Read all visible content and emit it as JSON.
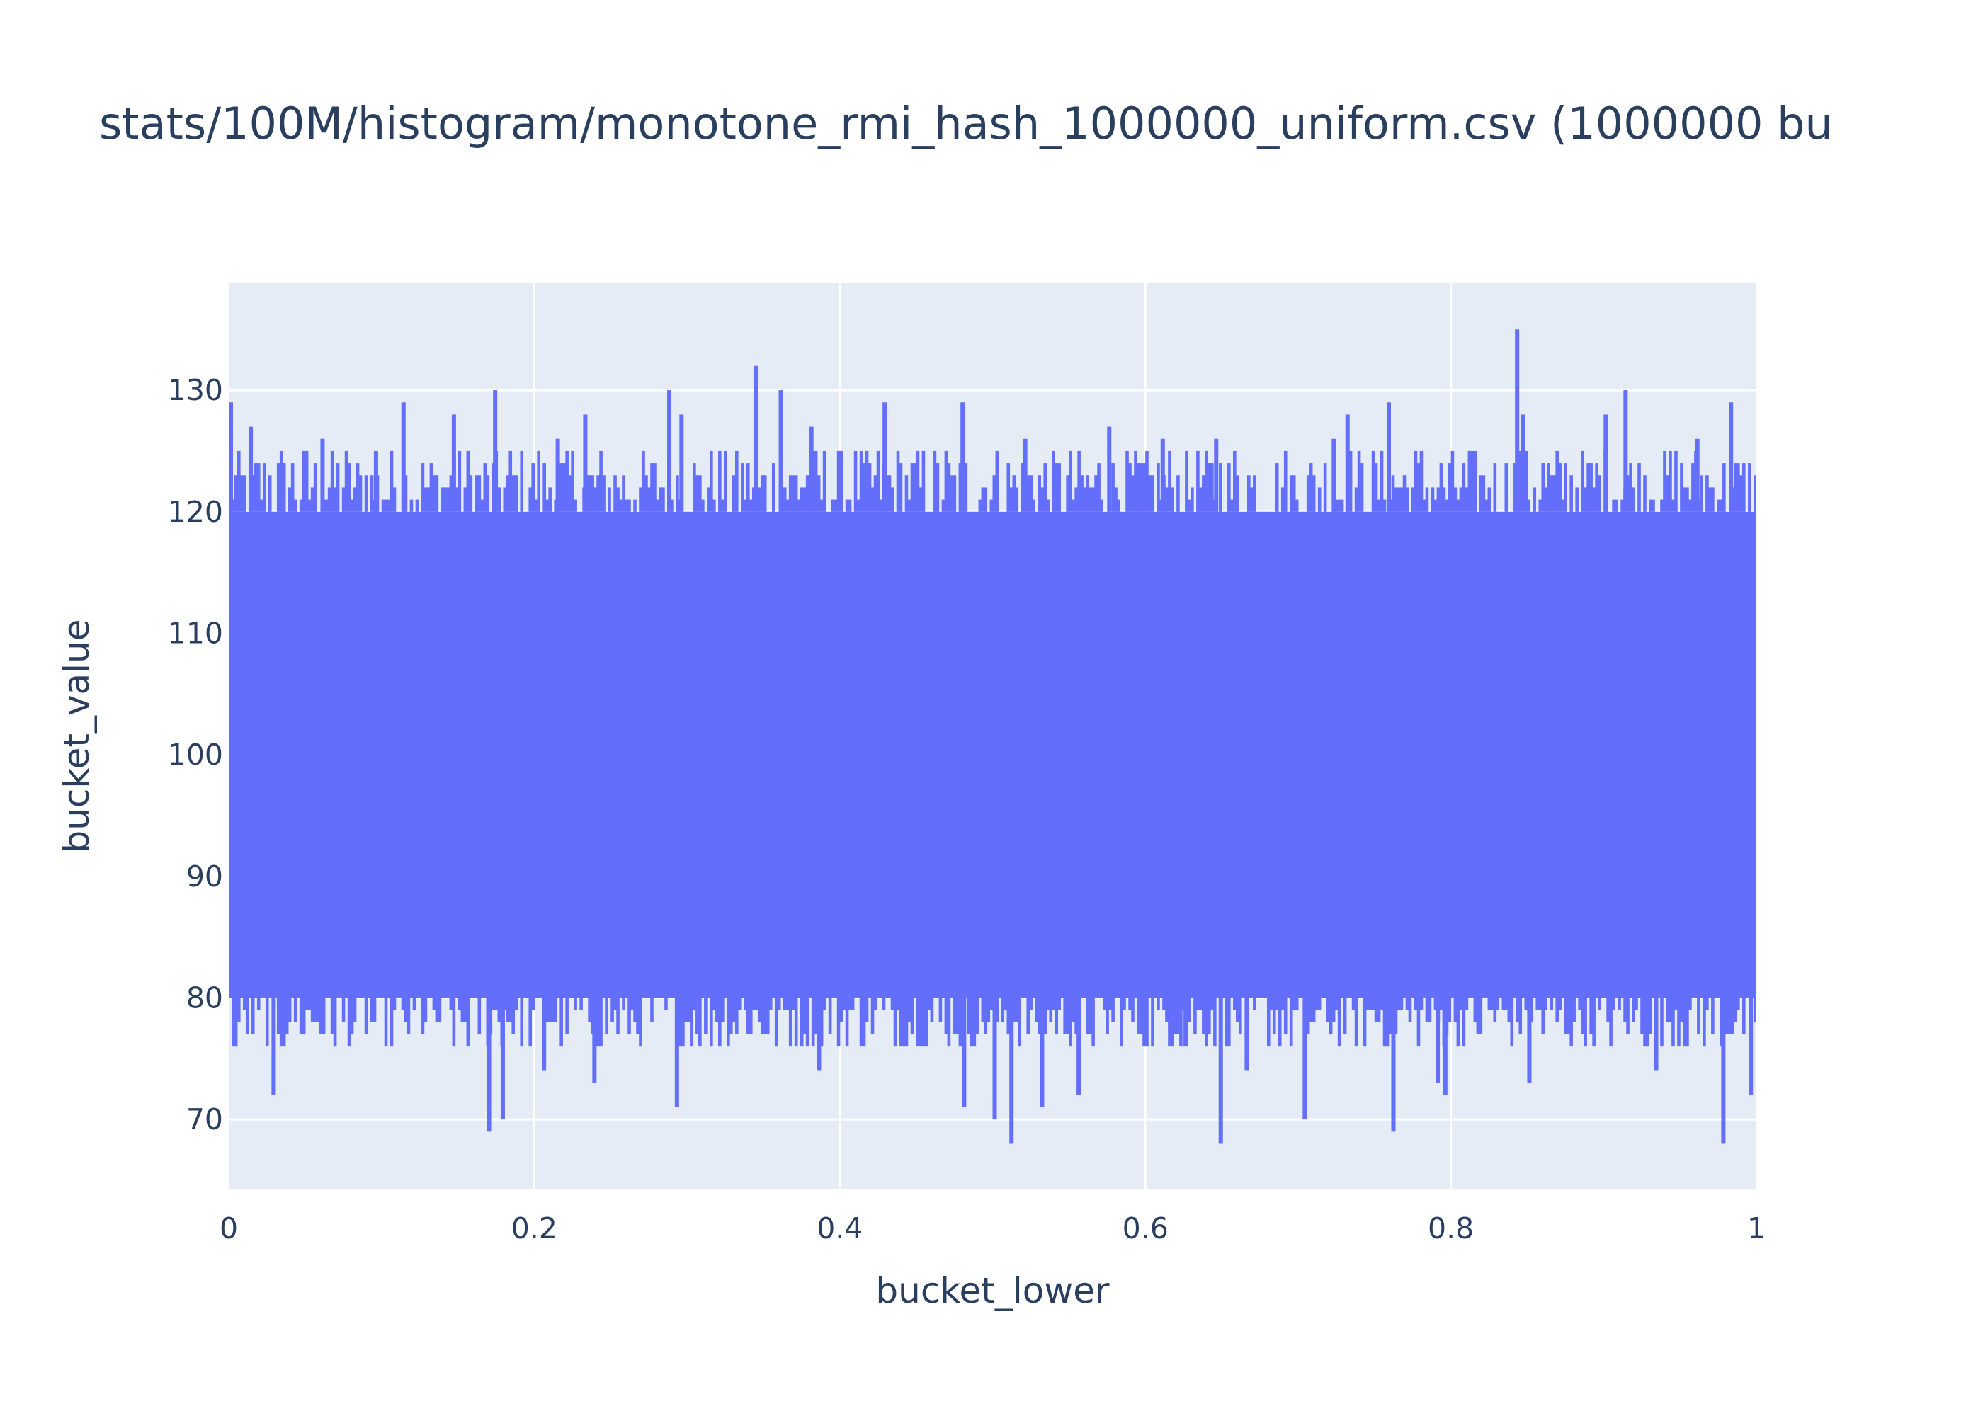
{
  "chart_data": {
    "type": "bar",
    "title": "stats/100M/histogram/monotone_rmi_hash_1000000_uniform.csv (1000000 bu",
    "xlabel": "bucket_lower",
    "ylabel": "bucket_value",
    "xlim": [
      0,
      1
    ],
    "ylim": [
      64.3,
      138.8
    ],
    "x_ticks": [
      0,
      0.2,
      0.4,
      0.6,
      0.8,
      1
    ],
    "x_tick_labels": [
      "0",
      "0.2",
      "0.4",
      "0.6",
      "0.8",
      "1"
    ],
    "y_ticks": [
      70,
      80,
      90,
      100,
      110,
      120,
      130
    ],
    "y_tick_labels": [
      "70",
      "80",
      "90",
      "100",
      "110",
      "120",
      "130"
    ],
    "grid": true,
    "bucket_count": 1000000,
    "value_distribution": {
      "typical_min": 80,
      "typical_max": 120
    },
    "series": [
      {
        "color": "#636efa",
        "x": [
          0.0,
          0.003,
          0.013,
          0.028,
          0.034,
          0.06,
          0.095,
          0.113,
          0.146,
          0.169,
          0.173,
          0.178,
          0.205,
          0.214,
          0.232,
          0.238,
          0.287,
          0.292,
          0.295,
          0.344,
          0.36,
          0.38,
          0.385,
          0.428,
          0.479,
          0.48,
          0.5,
          0.511,
          0.52,
          0.531,
          0.555,
          0.575,
          0.61,
          0.625,
          0.645,
          0.648,
          0.665,
          0.703,
          0.722,
          0.731,
          0.758,
          0.761,
          0.79,
          0.795,
          0.842,
          0.846,
          0.85,
          0.9,
          0.913,
          0.933,
          0.96,
          0.977,
          0.982,
          0.995
        ],
        "y": [
          129,
          76,
          127,
          72,
          124,
          126,
          125,
          129,
          128,
          69,
          130,
          70,
          74,
          126,
          128,
          73,
          130,
          71,
          128,
          132,
          130,
          127,
          74,
          129,
          129,
          71,
          70,
          68,
          126,
          71,
          72,
          127,
          126,
          76,
          126,
          68,
          74,
          70,
          126,
          128,
          129,
          69,
          73,
          72,
          135,
          128,
          73,
          128,
          130,
          74,
          126,
          68,
          129,
          72
        ]
      }
    ]
  }
}
